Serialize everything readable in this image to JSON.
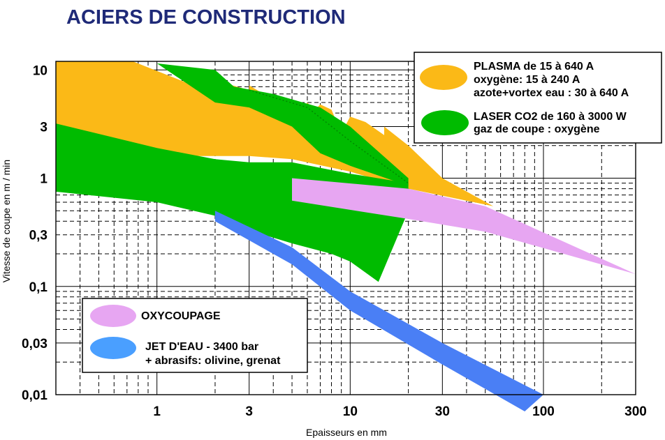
{
  "chart_data": {
    "type": "area",
    "title": "ACIERS DE CONSTRUCTION",
    "xlabel": "Epaisseurs en mm",
    "ylabel": "Vitesse de coupe en m / min",
    "x_scale": "log",
    "y_scale": "log",
    "xlim": [
      0.3,
      300
    ],
    "ylim": [
      0.01,
      12
    ],
    "x_ticks": [
      1,
      3,
      10,
      30,
      100,
      300
    ],
    "x_tick_labels": [
      "1",
      "3",
      "10",
      "30",
      "100",
      "300"
    ],
    "y_ticks": [
      10,
      3,
      1,
      0.3,
      0.1,
      0.03,
      0.01
    ],
    "y_tick_labels": [
      "10",
      "3",
      "1",
      "0,3",
      "0,1",
      "0,03",
      "0,01"
    ],
    "grid": true,
    "colors": {
      "plasma": "#fbb917",
      "laser": "#00bb00",
      "oxy": "#e7a6f2",
      "jet": "#4a7ff5",
      "title": "#1f2a78"
    },
    "series": [
      {
        "key": "plasma",
        "upper": [
          [
            0.3,
            12
          ],
          [
            0.75,
            12
          ],
          [
            2,
            6
          ],
          [
            2,
            8
          ],
          [
            3,
            6.5
          ],
          [
            3,
            7.2
          ],
          [
            4,
            5.3
          ],
          [
            5,
            3.3
          ],
          [
            6,
            5
          ],
          [
            6.5,
            4.2
          ],
          [
            7,
            4.8
          ],
          [
            8,
            4.3
          ],
          [
            9,
            2.6
          ],
          [
            10,
            3.7
          ],
          [
            12,
            3.3
          ],
          [
            15,
            2.5
          ],
          [
            15,
            3
          ],
          [
            20,
            2
          ],
          [
            30,
            1
          ],
          [
            55,
            0.55
          ]
        ],
        "lower": [
          [
            0.3,
            1.6
          ],
          [
            3,
            1.6
          ],
          [
            5,
            1.5
          ],
          [
            10,
            1.15
          ],
          [
            20,
            0.8
          ],
          [
            55,
            0.55
          ]
        ]
      },
      {
        "key": "laser",
        "upper": [
          [
            0.3,
            3.2
          ],
          [
            1,
            1.9
          ],
          [
            2,
            1.5
          ],
          [
            3,
            1.4
          ],
          [
            5,
            1.4
          ],
          [
            10,
            1.1
          ],
          [
            20,
            0.9
          ]
        ],
        "lower": [
          [
            0.3,
            0.75
          ],
          [
            1,
            0.6
          ],
          [
            2,
            0.45
          ],
          [
            3,
            0.33
          ],
          [
            5,
            0.25
          ],
          [
            8,
            0.2
          ],
          [
            10,
            0.17
          ],
          [
            14,
            0.11
          ],
          [
            20,
            0.5
          ]
        ]
      },
      {
        "key": "laser_upper_band",
        "upper": [
          [
            1,
            11.5
          ],
          [
            2,
            10
          ],
          [
            2.5,
            7
          ],
          [
            4,
            6
          ],
          [
            7,
            4.5
          ],
          [
            10,
            3
          ],
          [
            20,
            1
          ]
        ],
        "lower": [
          [
            1,
            11.5
          ],
          [
            2,
            5
          ],
          [
            3,
            4.5
          ],
          [
            5,
            3
          ],
          [
            7,
            1.7
          ],
          [
            10,
            1.3
          ],
          [
            20,
            0.85
          ]
        ]
      },
      {
        "key": "oxy",
        "upper": [
          [
            5,
            1
          ],
          [
            20,
            0.8
          ],
          [
            50,
            0.55
          ],
          [
            300,
            0.13
          ]
        ],
        "lower": [
          [
            5,
            0.62
          ],
          [
            20,
            0.42
          ],
          [
            50,
            0.32
          ],
          [
            300,
            0.13
          ]
        ]
      },
      {
        "key": "jet",
        "upper": [
          [
            2,
            0.5
          ],
          [
            5,
            0.23
          ],
          [
            10,
            0.09
          ],
          [
            30,
            0.03
          ],
          [
            100,
            0.01
          ]
        ],
        "lower": [
          [
            2,
            0.4
          ],
          [
            5,
            0.16
          ],
          [
            10,
            0.06
          ],
          [
            30,
            0.019
          ],
          [
            80,
            0.007
          ]
        ]
      }
    ]
  },
  "legend_top": {
    "plasma_lines": [
      "PLASMA de 15 à 640 A",
      "oxygène: 15 à 240 A",
      "azote+vortex eau : 30 à 640 A"
    ],
    "laser_lines": [
      "LASER CO2 de 160 à 3000 W",
      "gaz de coupe : oxygène"
    ]
  },
  "legend_bottom": {
    "oxy_lines": [
      "OXYCOUPAGE"
    ],
    "jet_lines": [
      "JET D'EAU - 3400 bar",
      "+ abrasifs: olivine, grenat"
    ]
  }
}
